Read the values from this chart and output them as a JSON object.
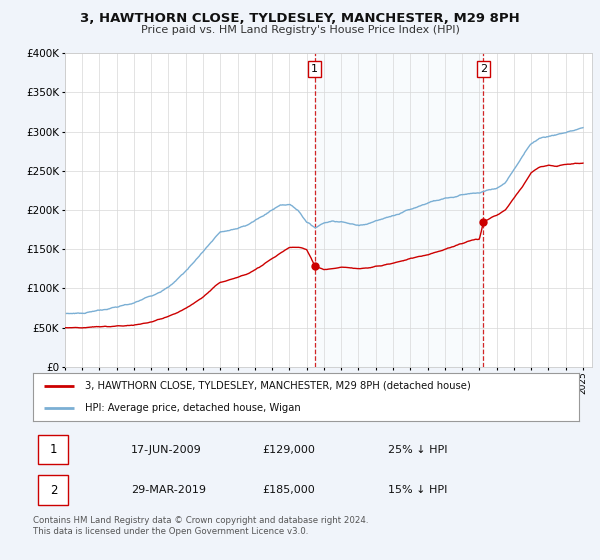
{
  "title": "3, HAWTHORN CLOSE, TYLDESLEY, MANCHESTER, M29 8PH",
  "subtitle": "Price paid vs. HM Land Registry's House Price Index (HPI)",
  "background_color": "#f0f4fa",
  "plot_bg_color": "#ffffff",
  "red_line_color": "#cc0000",
  "blue_line_color": "#7bafd4",
  "marker1_date_num": 2009.46,
  "marker1_value": 129000,
  "marker2_date_num": 2019.24,
  "marker2_value": 185000,
  "vline1_x": 2009.46,
  "vline2_x": 2019.24,
  "ylim": [
    0,
    400000
  ],
  "xlim": [
    1995,
    2025.5
  ],
  "yticks": [
    0,
    50000,
    100000,
    150000,
    200000,
    250000,
    300000,
    350000,
    400000
  ],
  "ytick_labels": [
    "£0",
    "£50K",
    "£100K",
    "£150K",
    "£200K",
    "£250K",
    "£300K",
    "£350K",
    "£400K"
  ],
  "legend_label_red": "3, HAWTHORN CLOSE, TYLDESLEY, MANCHESTER, M29 8PH (detached house)",
  "legend_label_blue": "HPI: Average price, detached house, Wigan",
  "annot1_date": "17-JUN-2009",
  "annot1_price": "£129,000",
  "annot1_hpi": "25% ↓ HPI",
  "annot2_date": "29-MAR-2019",
  "annot2_price": "£185,000",
  "annot2_hpi": "15% ↓ HPI",
  "footer": "Contains HM Land Registry data © Crown copyright and database right 2024.\nThis data is licensed under the Open Government Licence v3.0."
}
